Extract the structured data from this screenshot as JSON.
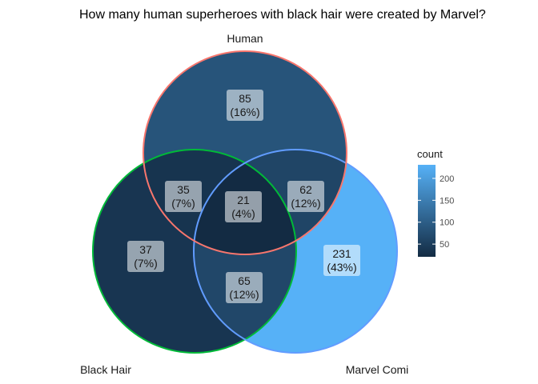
{
  "chart_data": {
    "type": "venn",
    "title": "How many human superheroes with black hair were created by Marvel?",
    "sets": [
      "Human",
      "Black Hair",
      "Marvel Comi"
    ],
    "regions": [
      {
        "sets": [
          "Human"
        ],
        "count": 85,
        "pct": "(16%)"
      },
      {
        "sets": [
          "Black Hair"
        ],
        "count": 37,
        "pct": "(7%)"
      },
      {
        "sets": [
          "Marvel Comi"
        ],
        "count": 231,
        "pct": "(43%)"
      },
      {
        "sets": [
          "Human",
          "Black Hair"
        ],
        "count": 35,
        "pct": "(7%)"
      },
      {
        "sets": [
          "Human",
          "Marvel Comi"
        ],
        "count": 62,
        "pct": "(12%)"
      },
      {
        "sets": [
          "Black Hair",
          "Marvel Comi"
        ],
        "count": 65,
        "pct": "(12%)"
      },
      {
        "sets": [
          "Human",
          "Black Hair",
          "Marvel Comi"
        ],
        "count": 21,
        "pct": "(4%)"
      }
    ],
    "set_colors": {
      "Human": "#F8766D",
      "Black Hair": "#00BA38",
      "Marvel Comi": "#619CFF"
    },
    "legend": {
      "title": "count",
      "ticks": [
        50,
        100,
        150,
        200
      ],
      "range": [
        21,
        231
      ],
      "placement": "right",
      "low_color": "#132B43",
      "high_color": "#56B1F7"
    }
  }
}
